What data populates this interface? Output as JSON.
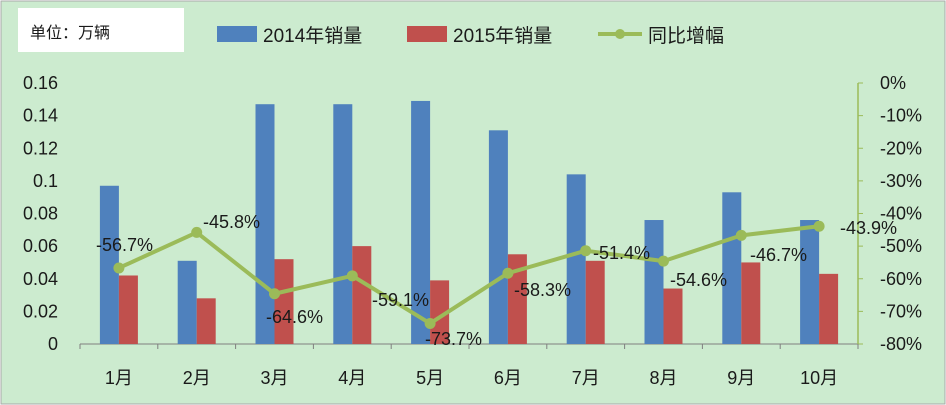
{
  "chart_data": {
    "type": "bar",
    "unit_label": "单位：万辆",
    "categories": [
      "1月",
      "2月",
      "3月",
      "4月",
      "5月",
      "6月",
      "7月",
      "8月",
      "9月",
      "10月"
    ],
    "series": [
      {
        "name": "2014年销量",
        "kind": "bar",
        "color": "#4F81BD",
        "values": [
          0.097,
          0.051,
          0.147,
          0.147,
          0.149,
          0.131,
          0.104,
          0.076,
          0.093,
          0.076
        ]
      },
      {
        "name": "2015年销量",
        "kind": "bar",
        "color": "#C0504D",
        "values": [
          0.042,
          0.028,
          0.052,
          0.06,
          0.039,
          0.055,
          0.051,
          0.034,
          0.05,
          0.043
        ]
      },
      {
        "name": "同比增幅",
        "kind": "line",
        "axis": "right",
        "color": "#9BBB59",
        "values": [
          -56.7,
          -45.8,
          -64.6,
          -59.1,
          -73.7,
          -58.3,
          -51.4,
          -54.6,
          -46.7,
          -43.9
        ],
        "labels": [
          "-56.7%",
          "-45.8%",
          "-64.6%",
          "-59.1%",
          "-73.7%",
          "-58.3%",
          "-51.4%",
          "-54.6%",
          "-46.7%",
          "-43.9%"
        ]
      }
    ],
    "y_left": {
      "min": 0,
      "max": 0.16,
      "ticks": [
        "0",
        "0.02",
        "0.04",
        "0.06",
        "0.08",
        "0.1",
        "0.12",
        "0.14",
        "0.16"
      ]
    },
    "y_right": {
      "min": -80,
      "max": 0,
      "ticks": [
        "-80%",
        "-70%",
        "-60%",
        "-50%",
        "-40%",
        "-30%",
        "-20%",
        "-10%",
        "0%"
      ]
    },
    "legend_position": "top",
    "grid": false,
    "background": "#CCEBCF"
  }
}
